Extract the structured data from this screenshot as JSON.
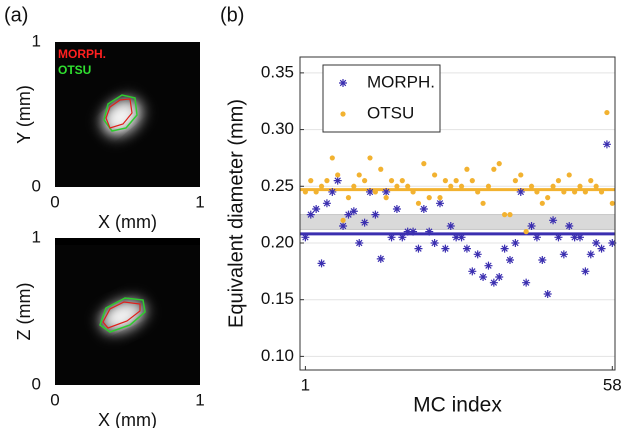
{
  "panel_a": {
    "label": "(a)",
    "images": [
      {
        "xlabel": "X (mm)",
        "ylabel": "Y (mm)",
        "xticks": [
          0,
          1
        ],
        "yticks": [
          0,
          1
        ],
        "legend": [
          "MORPH.",
          "OTSU"
        ]
      },
      {
        "xlabel": "X (mm)",
        "ylabel": "Z (mm)",
        "xticks": [
          0,
          1
        ],
        "yticks": [
          0,
          1
        ]
      }
    ]
  },
  "chart_data": {
    "type": "scatter",
    "panel_label": "(b)",
    "xlabel": "MC index",
    "ylabel": "Equivalent diameter (mm)",
    "x": [
      1,
      2,
      3,
      4,
      5,
      6,
      7,
      8,
      9,
      10,
      11,
      12,
      13,
      14,
      15,
      16,
      17,
      18,
      19,
      20,
      21,
      22,
      23,
      24,
      25,
      26,
      27,
      28,
      29,
      30,
      31,
      32,
      33,
      34,
      35,
      36,
      37,
      38,
      39,
      40,
      41,
      42,
      43,
      44,
      45,
      46,
      47,
      48,
      49,
      50,
      51,
      52,
      53,
      54,
      55,
      56,
      57,
      58
    ],
    "series": [
      {
        "name": "MORPH.",
        "color": "#3b2fb0",
        "marker": "asterisk",
        "hline": 0.208,
        "values": [
          0.205,
          0.225,
          0.23,
          0.182,
          0.235,
          0.245,
          0.255,
          0.215,
          0.225,
          0.228,
          0.2,
          0.218,
          0.245,
          0.225,
          0.186,
          0.245,
          0.205,
          0.23,
          0.205,
          0.21,
          0.21,
          0.195,
          0.23,
          0.21,
          0.2,
          0.235,
          0.195,
          0.215,
          0.205,
          0.205,
          0.195,
          0.175,
          0.19,
          0.17,
          0.18,
          0.165,
          0.17,
          0.195,
          0.185,
          0.2,
          0.245,
          0.165,
          0.215,
          0.205,
          0.185,
          0.155,
          0.22,
          0.205,
          0.19,
          0.215,
          0.205,
          0.205,
          0.175,
          0.19,
          0.2,
          0.195,
          0.287,
          0.2
        ]
      },
      {
        "name": "OTSU",
        "color": "#f2b230",
        "marker": "dot",
        "hline": 0.247,
        "values": [
          0.245,
          0.255,
          0.245,
          0.25,
          0.255,
          0.275,
          0.26,
          0.22,
          0.24,
          0.25,
          0.26,
          0.255,
          0.275,
          0.245,
          0.265,
          0.24,
          0.255,
          0.25,
          0.255,
          0.25,
          0.245,
          0.235,
          0.27,
          0.24,
          0.26,
          0.24,
          0.255,
          0.25,
          0.255,
          0.25,
          0.265,
          0.255,
          0.245,
          0.235,
          0.25,
          0.265,
          0.27,
          0.225,
          0.225,
          0.255,
          0.26,
          0.21,
          0.25,
          0.245,
          0.235,
          0.24,
          0.25,
          0.255,
          0.245,
          0.26,
          0.245,
          0.25,
          0.245,
          0.255,
          0.25,
          0.245,
          0.315,
          0.235
        ]
      }
    ],
    "band": [
      0.212,
      0.225
    ],
    "band_color": "#d9d9d9",
    "xlim": [
      0,
      58.5
    ],
    "ylim": [
      0.088,
      0.364
    ],
    "xticks": [
      1,
      58
    ],
    "yticks": [
      {
        "value": 0.1,
        "label": "0.10"
      },
      {
        "value": 0.15,
        "label": "0.15"
      },
      {
        "value": 0.2,
        "label": "0.20"
      },
      {
        "value": 0.25,
        "label": "0.25"
      },
      {
        "value": 0.3,
        "label": "0.30"
      },
      {
        "value": 0.35,
        "label": "0.35"
      }
    ],
    "grid": true,
    "legend": "upper-left"
  }
}
